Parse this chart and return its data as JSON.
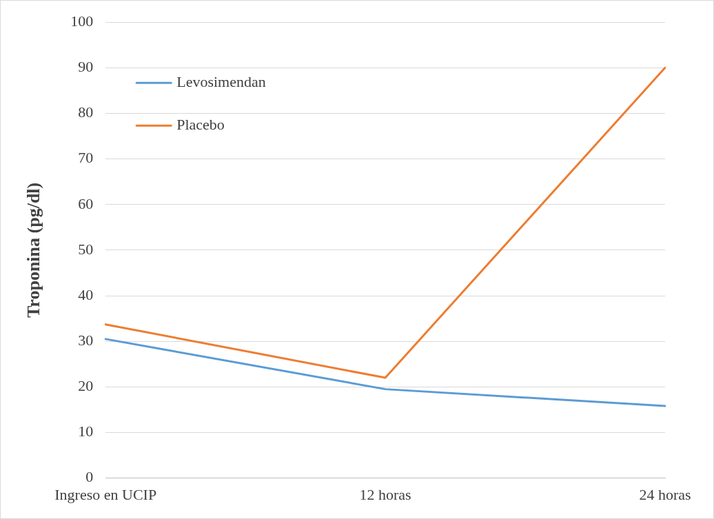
{
  "chart_data": {
    "type": "line",
    "ylabel": "Troponina (pg/dl)",
    "categories": [
      "Ingreso en UCIP",
      "12 horas",
      "24 horas"
    ],
    "series": [
      {
        "name": "Levosimendan",
        "color": "#5b9bd5",
        "values": [
          30.5,
          19.5,
          15.8
        ]
      },
      {
        "name": "Placebo",
        "color": "#ed7d31",
        "values": [
          33.7,
          22,
          90
        ]
      }
    ],
    "ylim": [
      0,
      100
    ],
    "yticks": [
      0,
      10,
      20,
      30,
      40,
      50,
      60,
      70,
      80,
      90,
      100
    ],
    "grid": "y",
    "legend": "top left",
    "marker": "none",
    "line_style": "solid"
  }
}
